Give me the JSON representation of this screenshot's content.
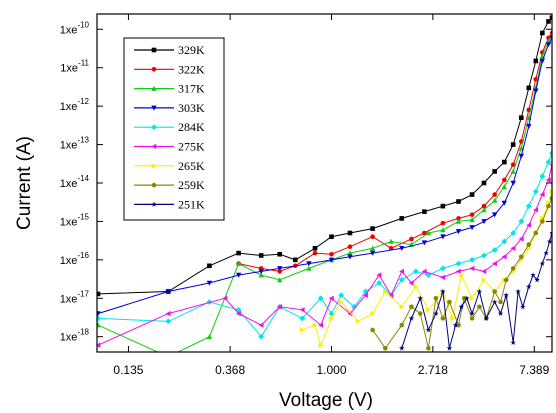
{
  "chart_data": {
    "type": "line",
    "xlabel": "Voltage (V)",
    "ylabel": "Current (A)",
    "x_scale": "log",
    "y_scale": "log",
    "xlim": [
      0.099,
      8.8
    ],
    "ylim": [
      4e-19,
      2.5e-10
    ],
    "x_ticks": [
      0.135,
      0.368,
      1.0,
      2.718,
      7.389
    ],
    "x_tick_labels": [
      "0.135",
      "0.368",
      "1.000",
      "2.718",
      "7.389"
    ],
    "y_ticks": [
      1e-18,
      1e-17,
      1e-16,
      1e-15,
      1e-14,
      1e-13,
      1e-12,
      1e-11,
      1e-10
    ],
    "y_tick_labels": [
      {
        "base": "1xe",
        "exp": "-18"
      },
      {
        "base": "1xe",
        "exp": "-17"
      },
      {
        "base": "1xe",
        "exp": "-16"
      },
      {
        "base": "1xe",
        "exp": "-15"
      },
      {
        "base": "1xe",
        "exp": "-14"
      },
      {
        "base": "1xe",
        "exp": "-13"
      },
      {
        "base": "1xe",
        "exp": "-12"
      },
      {
        "base": "1xe",
        "exp": "-11"
      },
      {
        "base": "1xe",
        "exp": "-10"
      }
    ],
    "legend_position": "top-left",
    "grid": false,
    "series": [
      {
        "name": "329K",
        "color": "#000000",
        "marker": "square",
        "points": [
          [
            0.1,
            1.3e-17
          ],
          [
            0.2,
            1.5e-17
          ],
          [
            0.3,
            7e-17
          ],
          [
            0.4,
            1.5e-16
          ],
          [
            0.5,
            1.3e-16
          ],
          [
            0.6,
            1.4e-16
          ],
          [
            0.7,
            1e-16
          ],
          [
            0.85,
            2e-16
          ],
          [
            1.0,
            4e-16
          ],
          [
            1.2,
            5e-16
          ],
          [
            1.5,
            6.5e-16
          ],
          [
            2.0,
            1.2e-15
          ],
          [
            2.5,
            1.8e-15
          ],
          [
            3.0,
            2.5e-15
          ],
          [
            3.5,
            3.3e-15
          ],
          [
            4.0,
            5e-15
          ],
          [
            4.5,
            1e-14
          ],
          [
            5.0,
            2e-14
          ],
          [
            5.5,
            3.5e-14
          ],
          [
            6.0,
            1e-13
          ],
          [
            6.5,
            5e-13
          ],
          [
            7.0,
            3e-12
          ],
          [
            7.5,
            1.5e-11
          ],
          [
            8.0,
            8e-11
          ],
          [
            8.5,
            1.6e-10
          ],
          [
            8.8,
            2e-10
          ]
        ]
      },
      {
        "name": "322K",
        "color": "#ee0000",
        "marker": "circle",
        "points": [
          [
            0.4,
            8e-17
          ],
          [
            0.5,
            6e-17
          ],
          [
            0.6,
            5e-17
          ],
          [
            0.7,
            7e-17
          ],
          [
            0.85,
            1.5e-16
          ],
          [
            1.0,
            1.4e-16
          ],
          [
            1.2,
            2.2e-16
          ],
          [
            1.5,
            4e-16
          ],
          [
            1.8,
            2e-16
          ],
          [
            2.2,
            3.5e-16
          ],
          [
            2.5,
            5e-16
          ],
          [
            3.0,
            9e-16
          ],
          [
            3.5,
            1.2e-15
          ],
          [
            4.0,
            1.5e-15
          ],
          [
            4.5,
            2.5e-15
          ],
          [
            5.0,
            5e-15
          ],
          [
            5.5,
            1.2e-14
          ],
          [
            6.0,
            3e-14
          ],
          [
            6.5,
            1.2e-13
          ],
          [
            7.0,
            8e-13
          ],
          [
            7.5,
            5e-12
          ],
          [
            8.0,
            2.5e-11
          ],
          [
            8.5,
            6e-11
          ],
          [
            8.8,
            8e-11
          ]
        ]
      },
      {
        "name": "317K",
        "color": "#11cc11",
        "marker": "triangle",
        "points": [
          [
            0.1,
            2e-18
          ],
          [
            0.2,
            3e-19
          ],
          [
            0.3,
            1e-18
          ],
          [
            0.4,
            8e-17
          ],
          [
            0.5,
            4e-17
          ],
          [
            0.6,
            3e-17
          ],
          [
            0.8,
            6e-17
          ],
          [
            1.0,
            1e-16
          ],
          [
            1.2,
            1.5e-16
          ],
          [
            1.5,
            2e-16
          ],
          [
            1.8,
            3e-16
          ],
          [
            2.2,
            2.5e-16
          ],
          [
            2.6,
            5e-16
          ],
          [
            3.0,
            6e-16
          ],
          [
            3.5,
            1e-15
          ],
          [
            4.0,
            1.1e-15
          ],
          [
            4.5,
            2e-15
          ],
          [
            5.0,
            3.5e-15
          ],
          [
            5.5,
            8e-15
          ],
          [
            6.0,
            2e-14
          ],
          [
            6.5,
            8e-14
          ],
          [
            7.0,
            5e-13
          ],
          [
            7.5,
            3e-12
          ],
          [
            8.0,
            2e-11
          ],
          [
            8.5,
            5e-11
          ],
          [
            8.8,
            7e-11
          ]
        ]
      },
      {
        "name": "303K",
        "color": "#0000dd",
        "marker": "triangle-down",
        "points": [
          [
            0.1,
            4e-18
          ],
          [
            0.2,
            1.5e-17
          ],
          [
            0.3,
            2.5e-17
          ],
          [
            0.4,
            4e-17
          ],
          [
            0.5,
            5e-17
          ],
          [
            0.6,
            6e-17
          ],
          [
            0.8,
            8e-17
          ],
          [
            1.0,
            1e-16
          ],
          [
            1.2,
            1.2e-16
          ],
          [
            1.5,
            1.5e-16
          ],
          [
            2.0,
            2e-16
          ],
          [
            2.5,
            2.8e-16
          ],
          [
            3.0,
            4e-16
          ],
          [
            3.5,
            5.5e-16
          ],
          [
            4.0,
            7e-16
          ],
          [
            4.5,
            1e-15
          ],
          [
            5.0,
            1.5e-15
          ],
          [
            5.5,
            3e-15
          ],
          [
            6.0,
            1e-14
          ],
          [
            6.5,
            5e-14
          ],
          [
            7.0,
            3e-13
          ],
          [
            7.5,
            2.5e-12
          ],
          [
            8.0,
            1.5e-11
          ],
          [
            8.5,
            4e-11
          ],
          [
            8.8,
            6e-11
          ]
        ]
      },
      {
        "name": "284K",
        "color": "#00e5e5",
        "marker": "diamond",
        "points": [
          [
            0.1,
            3e-18
          ],
          [
            0.2,
            2.5e-18
          ],
          [
            0.3,
            8e-18
          ],
          [
            0.4,
            5e-18
          ],
          [
            0.5,
            1e-18
          ],
          [
            0.6,
            6e-18
          ],
          [
            0.75,
            3e-18
          ],
          [
            0.9,
            1e-17
          ],
          [
            1.0,
            4e-18
          ],
          [
            1.1,
            1.2e-17
          ],
          [
            1.25,
            6e-18
          ],
          [
            1.4,
            1.5e-17
          ],
          [
            1.6,
            2.5e-17
          ],
          [
            1.8,
            1.2e-17
          ],
          [
            2.0,
            3e-17
          ],
          [
            2.3,
            5e-17
          ],
          [
            2.6,
            4e-17
          ],
          [
            3.0,
            6e-17
          ],
          [
            3.5,
            8e-17
          ],
          [
            4.0,
            1e-16
          ],
          [
            4.5,
            1.3e-16
          ],
          [
            5.0,
            1.8e-16
          ],
          [
            5.5,
            3e-16
          ],
          [
            6.0,
            5e-16
          ],
          [
            6.5,
            1e-15
          ],
          [
            7.0,
            2.5e-15
          ],
          [
            7.5,
            6e-15
          ],
          [
            8.0,
            1.5e-14
          ],
          [
            8.5,
            3.5e-14
          ],
          [
            8.8,
            6e-14
          ]
        ]
      },
      {
        "name": "275K",
        "color": "#ee11ee",
        "marker": "triangle-left",
        "points": [
          [
            0.1,
            6e-19
          ],
          [
            0.2,
            4e-18
          ],
          [
            0.35,
            1e-17
          ],
          [
            0.4,
            4e-18
          ],
          [
            0.5,
            2e-18
          ],
          [
            0.6,
            6e-18
          ],
          [
            0.75,
            5e-18
          ],
          [
            0.9,
            2e-18
          ],
          [
            1.0,
            1e-17
          ],
          [
            1.2,
            4e-18
          ],
          [
            1.4,
            1.2e-17
          ],
          [
            1.6,
            4e-17
          ],
          [
            1.8,
            1.2e-17
          ],
          [
            2.0,
            5e-17
          ],
          [
            2.2,
            2.5e-17
          ],
          [
            2.5,
            5e-17
          ],
          [
            3.0,
            3.5e-17
          ],
          [
            3.5,
            5e-17
          ],
          [
            4.0,
            6e-17
          ],
          [
            4.5,
            5e-17
          ],
          [
            5.0,
            8e-17
          ],
          [
            5.5,
            1.2e-16
          ],
          [
            6.0,
            2e-16
          ],
          [
            6.5,
            3.5e-16
          ],
          [
            7.0,
            8e-16
          ],
          [
            7.5,
            2e-15
          ],
          [
            8.0,
            5e-15
          ],
          [
            8.5,
            1.2e-14
          ],
          [
            8.8,
            3e-14
          ]
        ]
      },
      {
        "name": "265K",
        "color": "#ffee00",
        "marker": "triangle-right",
        "points": [
          [
            0.75,
            1.5e-18
          ],
          [
            0.85,
            2e-18
          ],
          [
            0.9,
            6e-19
          ],
          [
            1.0,
            3e-18
          ],
          [
            1.1,
            8e-18
          ],
          [
            1.3,
            2.5e-18
          ],
          [
            1.5,
            4e-18
          ],
          [
            1.7,
            1.5e-17
          ],
          [
            2.0,
            6e-18
          ],
          [
            2.3,
            2e-17
          ],
          [
            2.6,
            5e-18
          ],
          [
            3.0,
            1.5e-17
          ],
          [
            3.3,
            3e-18
          ],
          [
            3.6,
            4e-17
          ],
          [
            4.0,
            1e-17
          ],
          [
            4.5,
            3e-17
          ],
          [
            5.0,
            1.5e-17
          ],
          [
            5.5,
            3e-17
          ],
          [
            6.0,
            5e-17
          ],
          [
            6.5,
            1e-16
          ],
          [
            7.0,
            2e-16
          ],
          [
            7.5,
            5e-16
          ],
          [
            8.0,
            1.2e-15
          ],
          [
            8.5,
            3e-15
          ],
          [
            8.8,
            6e-15
          ]
        ]
      },
      {
        "name": "259K",
        "color": "#888800",
        "marker": "hexagon",
        "points": [
          [
            1.5,
            1.5e-18
          ],
          [
            1.7,
            5e-19
          ],
          [
            2.0,
            2e-18
          ],
          [
            2.2,
            6e-18
          ],
          [
            2.4,
            4e-18
          ],
          [
            2.6,
            5e-19
          ],
          [
            2.8,
            1e-17
          ],
          [
            3.0,
            3e-18
          ],
          [
            3.2,
            8e-18
          ],
          [
            3.5,
            2e-18
          ],
          [
            3.7,
            1e-17
          ],
          [
            4.0,
            3e-18
          ],
          [
            4.3,
            6e-18
          ],
          [
            4.6,
            3e-18
          ],
          [
            5.0,
            1.5e-17
          ],
          [
            5.3,
            8e-18
          ],
          [
            5.6,
            3e-17
          ],
          [
            6.0,
            6e-17
          ],
          [
            6.5,
            1.2e-16
          ],
          [
            7.0,
            2.5e-16
          ],
          [
            7.5,
            5e-16
          ],
          [
            8.0,
            1e-15
          ],
          [
            8.5,
            2.5e-15
          ],
          [
            8.8,
            4e-15
          ]
        ]
      },
      {
        "name": "251K",
        "color": "#000080",
        "marker": "star",
        "points": [
          [
            2.0,
            5e-19
          ],
          [
            2.2,
            3e-18
          ],
          [
            2.4,
            1e-17
          ],
          [
            2.6,
            1.5e-18
          ],
          [
            2.8,
            4e-18
          ],
          [
            3.0,
            1.5e-17
          ],
          [
            3.2,
            5e-19
          ],
          [
            3.4,
            2e-18
          ],
          [
            3.6,
            6e-18
          ],
          [
            3.8,
            1e-17
          ],
          [
            4.0,
            4e-18
          ],
          [
            4.3,
            1.5e-17
          ],
          [
            4.6,
            3e-18
          ],
          [
            5.0,
            8e-18
          ],
          [
            5.3,
            4e-18
          ],
          [
            5.6,
            1.2e-17
          ],
          [
            6.0,
            7e-19
          ],
          [
            6.3,
            1.5e-17
          ],
          [
            6.6,
            6e-18
          ],
          [
            7.0,
            2e-17
          ],
          [
            7.3,
            4e-17
          ],
          [
            7.6,
            3e-17
          ],
          [
            8.0,
            8e-17
          ],
          [
            8.3,
            1.5e-16
          ],
          [
            8.6,
            3e-16
          ],
          [
            8.8,
            5e-16
          ]
        ]
      }
    ]
  }
}
